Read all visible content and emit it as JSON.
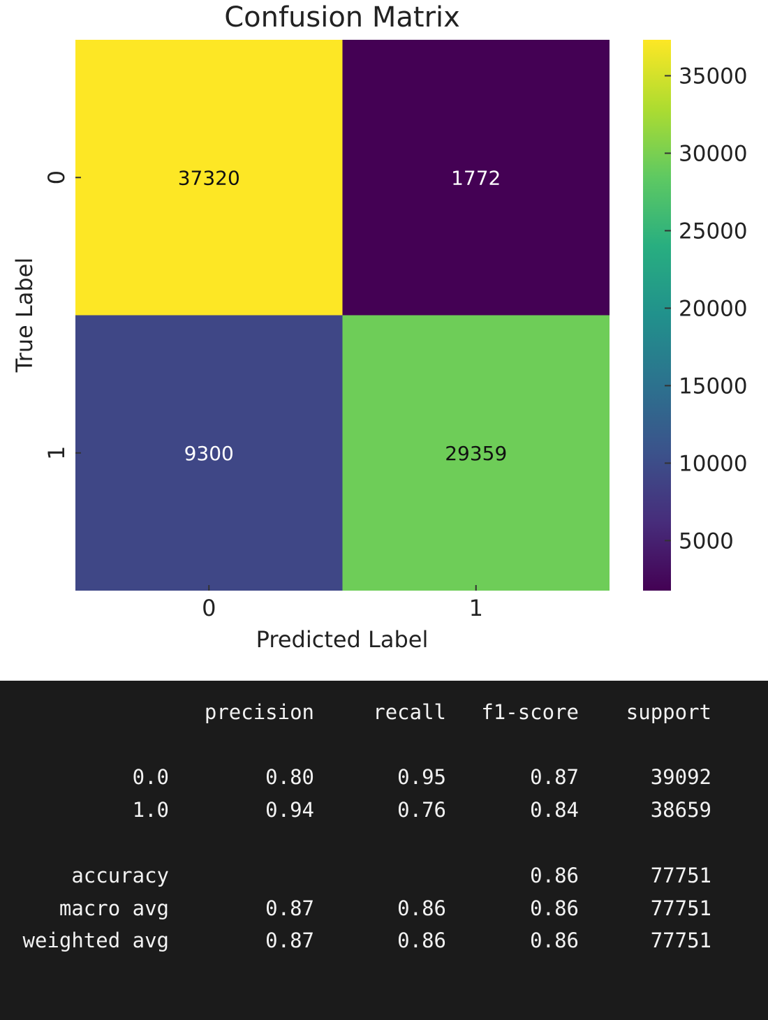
{
  "chart_data": {
    "type": "heatmap",
    "title": "Confusion Matrix",
    "xlabel": "Predicted Label",
    "ylabel": "True Label",
    "x_categories": [
      "0",
      "1"
    ],
    "y_categories": [
      "0",
      "1"
    ],
    "values": [
      [
        37320,
        1772
      ],
      [
        9300,
        29359
      ]
    ],
    "colormap": "viridis",
    "colorbar": {
      "range": [
        1772,
        37320
      ],
      "ticks": [
        5000,
        10000,
        15000,
        20000,
        25000,
        30000,
        35000
      ],
      "tick_labels": [
        "5000",
        "10000",
        "15000",
        "20000",
        "25000",
        "30000",
        "35000"
      ]
    }
  },
  "report": {
    "headers": [
      "precision",
      "recall",
      "f1-score",
      "support"
    ],
    "rows": [
      {
        "label": "0.0",
        "cells": [
          "0.80",
          "0.95",
          "0.87",
          "39092"
        ]
      },
      {
        "label": "1.0",
        "cells": [
          "0.94",
          "0.76",
          "0.84",
          "38659"
        ]
      },
      {
        "label": "accuracy",
        "cells": [
          "",
          "",
          "0.86",
          "77751"
        ]
      },
      {
        "label": "macro avg",
        "cells": [
          "0.87",
          "0.86",
          "0.86",
          "77751"
        ]
      },
      {
        "label": "weighted avg",
        "cells": [
          "0.87",
          "0.86",
          "0.86",
          "77751"
        ]
      }
    ]
  }
}
